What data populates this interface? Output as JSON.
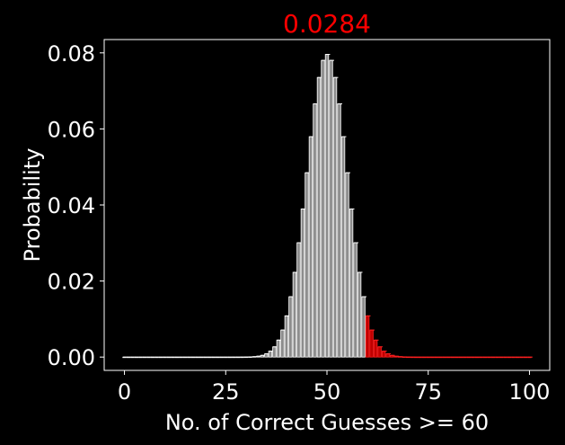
{
  "chart_data": {
    "type": "bar",
    "title": "0.0284",
    "title_color": "#ff0000",
    "xlabel": "No. of Correct Guesses >= 60",
    "ylabel": "Probability",
    "xlim": [
      -5,
      105
    ],
    "ylim": [
      -0.0035,
      0.0835
    ],
    "xticks": [
      0,
      25,
      50,
      75,
      100
    ],
    "xtick_labels": [
      "0",
      "25",
      "50",
      "75",
      "100"
    ],
    "yticks": [
      0.0,
      0.02,
      0.04,
      0.06,
      0.08
    ],
    "ytick_labels": [
      "0.00",
      "0.02",
      "0.04",
      "0.06",
      "0.08"
    ],
    "grid": false,
    "background": "#000000",
    "foreground": "#ffffff",
    "threshold": 60,
    "colors": {
      "below_threshold": "#8c8c8c",
      "at_or_above_threshold": "#c00000",
      "edge_below": "#ffffff",
      "edge_above": "#ff2020"
    },
    "x_range": [
      0,
      100
    ],
    "binomial": {
      "n": 100,
      "p": 0.5
    }
  }
}
